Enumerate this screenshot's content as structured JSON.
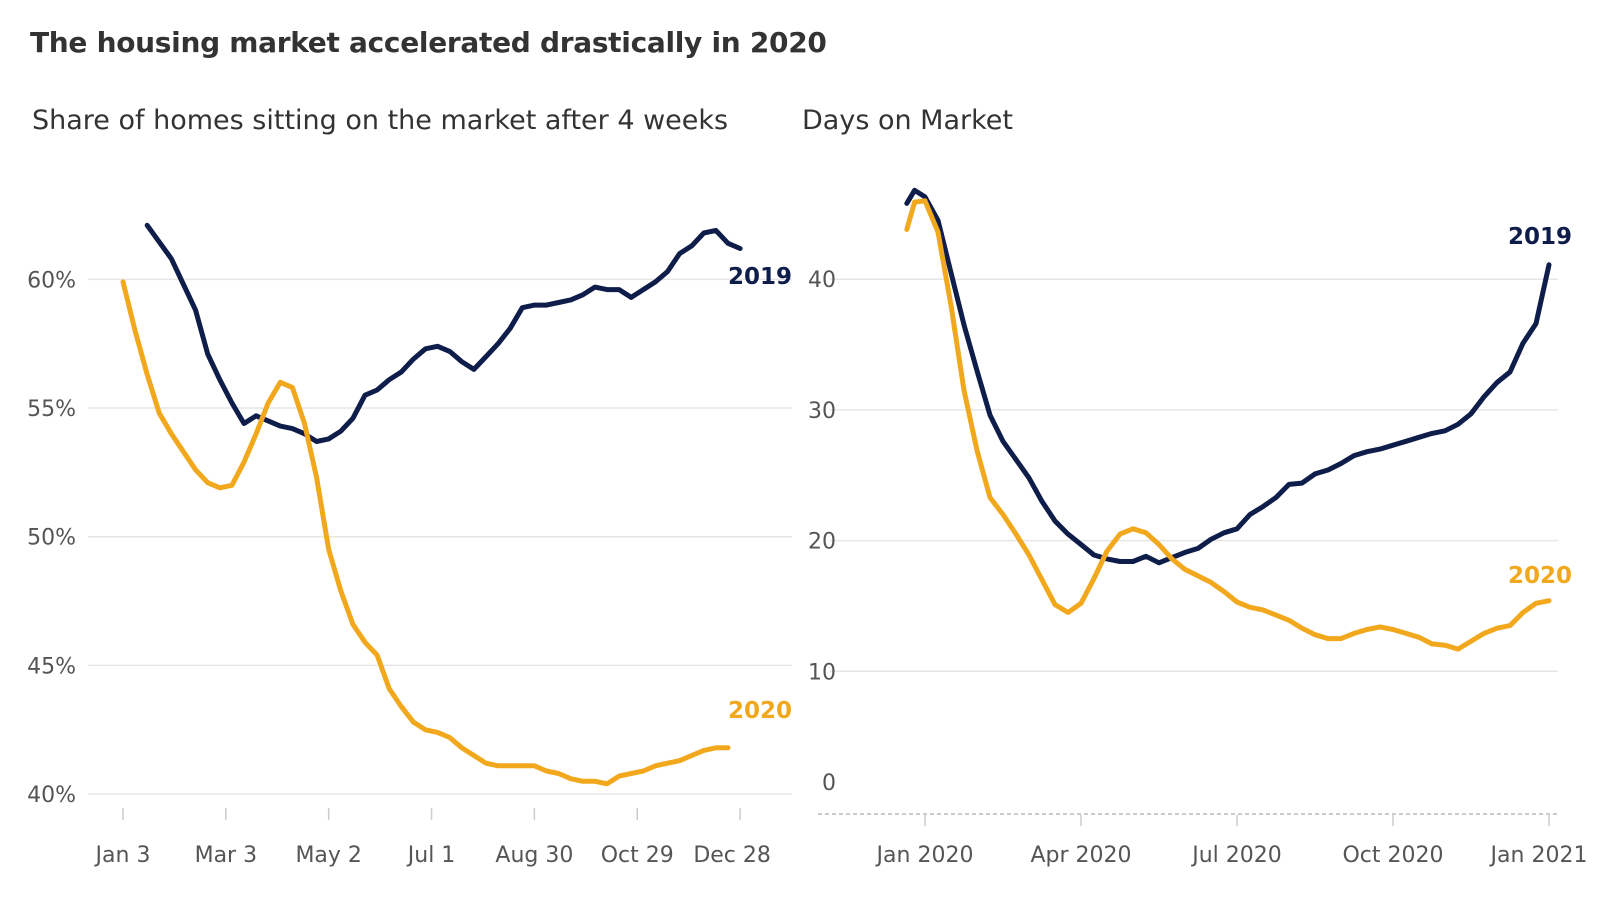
{
  "header": {
    "title": "The housing market accelerated drastically in 2020"
  },
  "colors": {
    "series_2019": "#0f1d4a",
    "series_2020": "#f2a81d",
    "grid": "#e6e6e6",
    "zero": "#bbbbbb"
  },
  "chart_data": [
    {
      "type": "line",
      "title": "Share of homes sitting on the market after 4 weeks",
      "xlabel": "",
      "ylabel": "",
      "x_ticks": [
        "Jan 3",
        "Mar 3",
        "May 2",
        "Jul 1",
        "Aug 30",
        "Oct 29",
        "Dec 28"
      ],
      "y_ticks": [
        "40%",
        "45%",
        "50%",
        "55%",
        "60%"
      ],
      "y_tick_values": [
        40,
        45,
        50,
        55,
        60
      ],
      "ylim": [
        39.5,
        62.5
      ],
      "grid": true,
      "series": [
        {
          "name": "2019",
          "x_week": [
            3,
            5,
            6,
            7,
            8,
            9,
            10,
            11,
            12,
            13,
            14,
            15,
            16,
            17,
            18,
            19,
            20,
            21,
            22,
            23,
            24,
            25,
            26,
            27,
            28,
            29,
            30,
            31,
            32,
            33,
            34,
            35,
            36,
            37,
            38,
            39,
            40,
            41,
            42,
            43,
            44,
            45,
            46,
            47,
            48,
            49,
            50,
            51,
            52
          ],
          "values": [
            62.1,
            60.8,
            59.8,
            58.8,
            57.1,
            56.1,
            55.2,
            54.4,
            54.7,
            54.5,
            54.3,
            54.2,
            54.0,
            53.7,
            53.8,
            54.1,
            54.6,
            55.5,
            55.7,
            56.1,
            56.4,
            56.9,
            57.3,
            57.4,
            57.2,
            56.8,
            56.5,
            57.0,
            57.5,
            58.1,
            58.9,
            59.0,
            59.0,
            59.1,
            59.2,
            59.4,
            59.7,
            59.6,
            59.6,
            59.3,
            59.6,
            59.9,
            60.3,
            61.0,
            61.3,
            61.8,
            61.9,
            61.4,
            61.2
          ],
          "end_label": "2019"
        },
        {
          "name": "2020",
          "x_week": [
            1,
            2,
            3,
            4,
            5,
            6,
            7,
            8,
            9,
            10,
            11,
            12,
            13,
            14,
            15,
            16,
            17,
            18,
            19,
            20,
            21,
            22,
            23,
            24,
            25,
            26,
            27,
            28,
            29,
            30,
            31,
            32,
            33,
            34,
            35,
            36,
            37,
            38,
            39,
            40,
            41,
            42,
            43,
            44,
            45,
            46,
            47,
            48,
            49,
            50,
            51
          ],
          "values": [
            59.9,
            58.0,
            56.3,
            54.8,
            54.0,
            53.3,
            52.6,
            52.1,
            51.9,
            52.0,
            52.9,
            54.0,
            55.2,
            56.0,
            55.8,
            54.4,
            52.3,
            49.5,
            47.9,
            46.6,
            45.9,
            45.4,
            44.1,
            43.4,
            42.8,
            42.5,
            42.4,
            42.2,
            41.8,
            41.5,
            41.2,
            41.1,
            41.1,
            41.1,
            41.1,
            40.9,
            40.8,
            40.6,
            40.5,
            40.5,
            40.4,
            40.7,
            40.8,
            40.9,
            41.1,
            41.2,
            41.3,
            41.5,
            41.7,
            41.8,
            41.8
          ],
          "end_label": "2020"
        }
      ]
    },
    {
      "type": "line",
      "title": "Days on Market",
      "xlabel": "",
      "ylabel": "",
      "x_ticks": [
        "Jan 2020",
        "Apr 2020",
        "Jul 2020",
        "Oct 2020",
        "Jan 2021"
      ],
      "x_tick_months": [
        0,
        3,
        6,
        9,
        12
      ],
      "y_ticks": [
        "0",
        "10",
        "20",
        "30",
        "40"
      ],
      "y_tick_values": [
        0,
        10,
        20,
        30,
        40
      ],
      "ylim": [
        -1.5,
        48
      ],
      "grid": true,
      "series": [
        {
          "name": "2019",
          "x_month": [
            -0.35,
            -0.2,
            0.0,
            0.25,
            0.5,
            0.75,
            1.0,
            1.25,
            1.5,
            1.75,
            2.0,
            2.25,
            2.5,
            2.75,
            3.0,
            3.25,
            3.5,
            3.75,
            4.0,
            4.25,
            4.5,
            4.75,
            5.0,
            5.25,
            5.5,
            5.75,
            6.0,
            6.25,
            6.5,
            6.75,
            7.0,
            7.25,
            7.5,
            7.75,
            8.0,
            8.25,
            8.5,
            8.75,
            9.0,
            9.25,
            9.5,
            9.75,
            10.0,
            10.25,
            10.5,
            10.75,
            11.0,
            11.25,
            11.5,
            11.75,
            12.0
          ],
          "values": [
            45.8,
            46.8,
            46.3,
            44.5,
            40.5,
            36.5,
            33.0,
            29.6,
            27.6,
            26.2,
            24.8,
            23.0,
            21.5,
            20.5,
            19.7,
            18.9,
            18.6,
            18.4,
            18.4,
            18.8,
            18.3,
            18.7,
            19.1,
            19.4,
            20.1,
            20.6,
            20.9,
            22.0,
            22.6,
            23.3,
            24.3,
            24.4,
            25.1,
            25.4,
            25.9,
            26.5,
            26.8,
            27.0,
            27.3,
            27.6,
            27.9,
            28.2,
            28.4,
            28.9,
            29.7,
            31.0,
            32.1,
            32.9,
            35.1,
            36.6,
            41.1
          ],
          "end_label": "2019"
        },
        {
          "name": "2020",
          "x_month": [
            -0.35,
            -0.2,
            0.0,
            0.25,
            0.5,
            0.75,
            1.0,
            1.25,
            1.5,
            1.75,
            2.0,
            2.25,
            2.5,
            2.75,
            3.0,
            3.25,
            3.5,
            3.75,
            4.0,
            4.25,
            4.5,
            4.75,
            5.0,
            5.25,
            5.5,
            5.75,
            6.0,
            6.25,
            6.5,
            6.75,
            7.0,
            7.25,
            7.5,
            7.75,
            8.0,
            8.25,
            8.5,
            8.75,
            9.0,
            9.25,
            9.5,
            9.75,
            10.0,
            10.25,
            10.5,
            10.75,
            11.0,
            11.25,
            11.5,
            11.75,
            12.0
          ],
          "values": [
            43.8,
            45.9,
            46.0,
            43.6,
            38.0,
            31.5,
            26.9,
            23.3,
            22.0,
            20.5,
            18.9,
            17.0,
            15.1,
            14.5,
            15.2,
            17.1,
            19.2,
            20.5,
            20.9,
            20.6,
            19.7,
            18.6,
            17.8,
            17.3,
            16.8,
            16.1,
            15.3,
            14.9,
            14.7,
            14.3,
            13.9,
            13.3,
            12.8,
            12.5,
            12.5,
            12.9,
            13.2,
            13.4,
            13.2,
            12.9,
            12.6,
            12.1,
            12.0,
            11.7,
            12.3,
            12.9,
            13.3,
            13.5,
            14.5,
            15.2,
            15.4
          ],
          "end_label": "2020"
        }
      ]
    }
  ]
}
